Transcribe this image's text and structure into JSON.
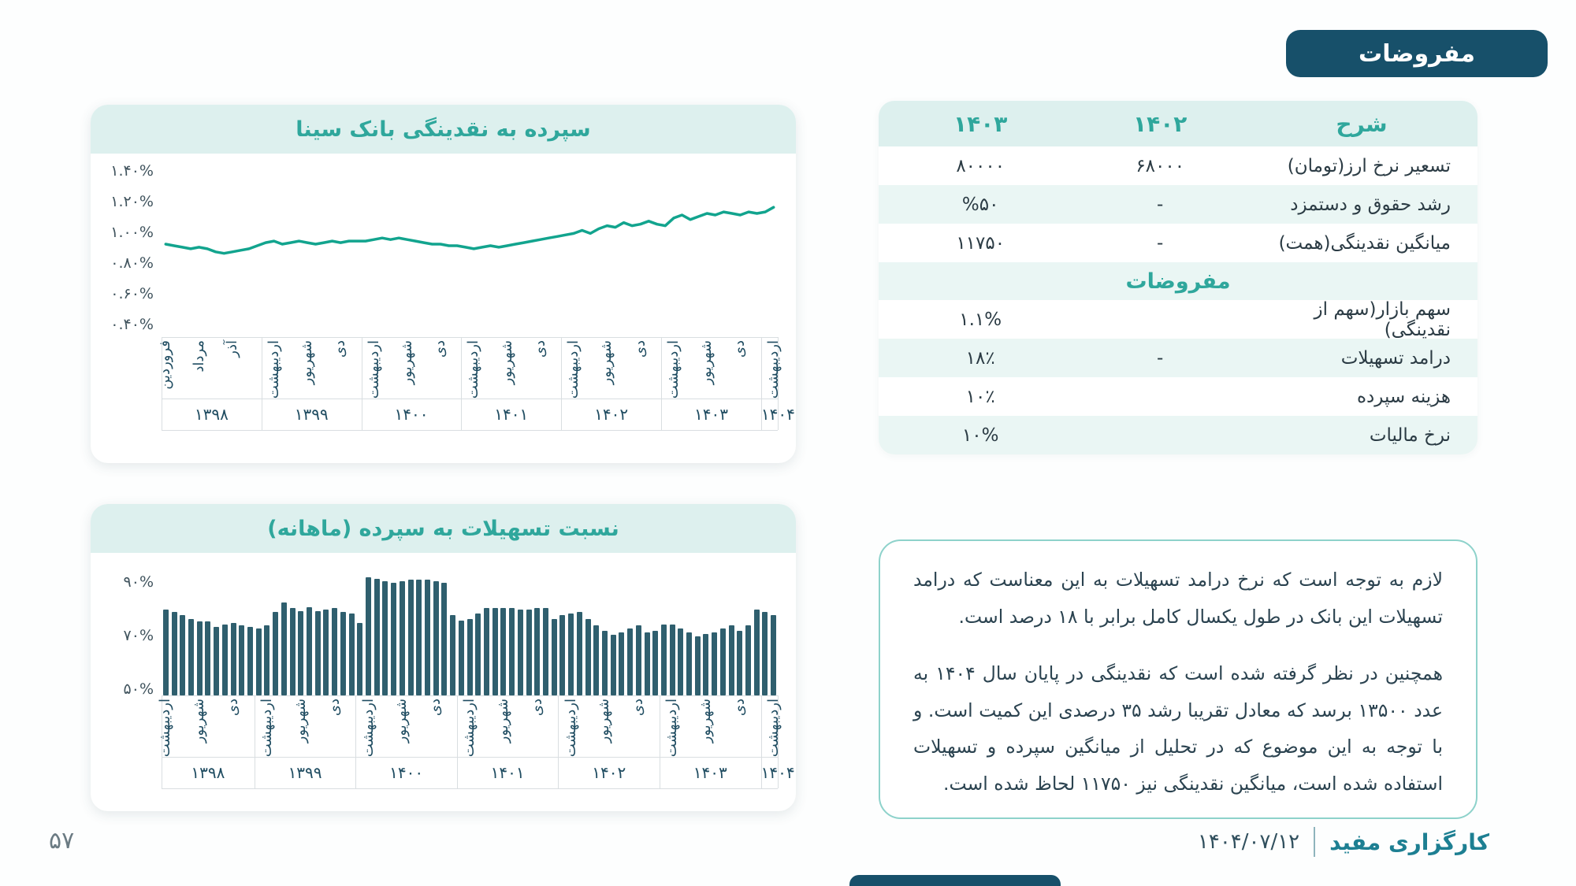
{
  "page": {
    "badge": "مفروضات",
    "page_number": "۵۷",
    "footer_brand": "کارگزاری مفید",
    "footer_date": "۱۴۰۴/۰۷/۱۲"
  },
  "colors": {
    "dark_teal": "#17506a",
    "accent_teal": "#2fa79c",
    "line_color": "#12a48e",
    "bar_color": "#2f5f6e",
    "band_bg": "#ddf0ee",
    "row_alt_bg": "#eaf6f4"
  },
  "table": {
    "headers": {
      "desc": "شرح",
      "y1402": "۱۴۰۲",
      "y1403": "۱۴۰۳"
    },
    "rows": [
      {
        "desc": "تسعیر نرخ ارز(تومان)",
        "v1402": "۶۸۰۰۰",
        "v1403": "۸۰۰۰۰"
      },
      {
        "desc": "رشد حقوق و دستمزد",
        "v1402": "-",
        "v1403": "%۵۰"
      },
      {
        "desc": "میانگین نقدینگی(همت)",
        "v1402": "-",
        "v1403": "۱۱۷۵۰"
      },
      {
        "section": "مفروضات"
      },
      {
        "desc": "سهم بازار(سهم از نقدینگی)",
        "v1402": "",
        "v1403": "۱.۱%"
      },
      {
        "desc": "درامد تسهیلات",
        "v1402": "-",
        "v1403": "۱۸٪"
      },
      {
        "desc": "هزینه سپرده",
        "v1402": "",
        "v1403": "۱۰٪"
      },
      {
        "desc": "نرخ مالیات",
        "v1402": "",
        "v1403": "۱۰%"
      }
    ]
  },
  "note": {
    "paragraph1": "لازم به توجه است که نرخ درامد تسهیلات به این معناست که درامد تسهیلات این بانک در طول یکسال کامل برابر با ۱۸ درصد است.",
    "paragraph2": "همچنین  در نظر گرفته شده است که نقدینگی در پایان سال ۱۴۰۴ به عدد ۱۳۵۰۰ برسد که معادل تقریبا رشد ۳۵ درصدی این کمیت است. و با توجه به این موضوع که در تحلیل از میانگین سپرده و تسهیلات استفاده شده است، میانگین نقدینگی نیز ۱۱۷۵۰ لحاظ شده است."
  },
  "chart_data": [
    {
      "type": "line",
      "title": "سپرده به نقدینگی بانک سینا",
      "color": "#12a48e",
      "ylim": [
        0.33,
        1.52
      ],
      "yticks": [
        {
          "label": "۱.۴۰%",
          "v": 1.4
        },
        {
          "label": "۱.۲۰%",
          "v": 1.2
        },
        {
          "label": "۱.۰۰%",
          "v": 1.0
        },
        {
          "label": "۰.۸۰%",
          "v": 0.8
        },
        {
          "label": "۰.۶۰%",
          "v": 0.6
        },
        {
          "label": "۰.۴۰%",
          "v": 0.4
        }
      ],
      "groups": [
        {
          "year": "۱۳۹۸",
          "count": 12,
          "months": [
            {
              "t": "فروردین",
              "i": 0
            },
            {
              "t": "مرداد",
              "i": 4
            },
            {
              "t": "آذر",
              "i": 8
            }
          ]
        },
        {
          "year": "۱۳۹۹",
          "count": 12,
          "months": [
            {
              "t": "اردیبهشت",
              "i": 1
            },
            {
              "t": "شهریور",
              "i": 5
            },
            {
              "t": "دی",
              "i": 9
            }
          ]
        },
        {
          "year": "۱۴۰۰",
          "count": 12,
          "months": [
            {
              "t": "اردیبهشت",
              "i": 1
            },
            {
              "t": "شهریور",
              "i": 5
            },
            {
              "t": "دی",
              "i": 9
            }
          ]
        },
        {
          "year": "۱۴۰۱",
          "count": 12,
          "months": [
            {
              "t": "اردیبهشت",
              "i": 1
            },
            {
              "t": "شهریور",
              "i": 5
            },
            {
              "t": "دی",
              "i": 9
            }
          ]
        },
        {
          "year": "۱۴۰۲",
          "count": 12,
          "months": [
            {
              "t": "اردیبهشت",
              "i": 1
            },
            {
              "t": "شهریور",
              "i": 5
            },
            {
              "t": "دی",
              "i": 9
            }
          ]
        },
        {
          "year": "۱۴۰۳",
          "count": 12,
          "months": [
            {
              "t": "اردیبهشت",
              "i": 1
            },
            {
              "t": "شهریور",
              "i": 5
            },
            {
              "t": "دی",
              "i": 9
            }
          ]
        },
        {
          "year": "۱۴۰۴",
          "count": 2,
          "months": [
            {
              "t": "اردیبهشت",
              "i": 1
            }
          ]
        }
      ],
      "values": [
        0.93,
        0.92,
        0.91,
        0.9,
        0.91,
        0.9,
        0.88,
        0.87,
        0.88,
        0.89,
        0.9,
        0.92,
        0.94,
        0.95,
        0.93,
        0.94,
        0.95,
        0.94,
        0.93,
        0.94,
        0.95,
        0.94,
        0.95,
        0.95,
        0.95,
        0.96,
        0.97,
        0.96,
        0.97,
        0.96,
        0.95,
        0.94,
        0.93,
        0.93,
        0.92,
        0.92,
        0.91,
        0.9,
        0.91,
        0.92,
        0.91,
        0.92,
        0.93,
        0.94,
        0.95,
        0.96,
        0.97,
        0.98,
        0.99,
        1.0,
        1.02,
        1.0,
        1.03,
        1.05,
        1.04,
        1.07,
        1.05,
        1.06,
        1.08,
        1.06,
        1.05,
        1.1,
        1.12,
        1.09,
        1.11,
        1.13,
        1.12,
        1.14,
        1.13,
        1.12,
        1.14,
        1.13,
        1.14,
        1.17
      ]
    },
    {
      "type": "bar",
      "title": "نسبت تسهیلات به سپرده (ماهانه)",
      "color": "#2f5f6e",
      "ylim": [
        48,
        97
      ],
      "yticks": [
        {
          "label": "۹۰%",
          "v": 90
        },
        {
          "label": "۷۰%",
          "v": 70
        },
        {
          "label": "۵۰%",
          "v": 50
        }
      ],
      "groups": [
        {
          "year": "۱۳۹۸",
          "count": 11,
          "months": [
            {
              "t": "اردیبهشت",
              "i": 0
            },
            {
              "t": "شهریور",
              "i": 4
            },
            {
              "t": "دی",
              "i": 8
            }
          ]
        },
        {
          "year": "۱۳۹۹",
          "count": 12,
          "months": [
            {
              "t": "اردیبهشت",
              "i": 1
            },
            {
              "t": "شهریور",
              "i": 5
            },
            {
              "t": "دی",
              "i": 9
            }
          ]
        },
        {
          "year": "۱۴۰۰",
          "count": 12,
          "months": [
            {
              "t": "اردیبهشت",
              "i": 1
            },
            {
              "t": "شهریور",
              "i": 5
            },
            {
              "t": "دی",
              "i": 9
            }
          ]
        },
        {
          "year": "۱۴۰۱",
          "count": 12,
          "months": [
            {
              "t": "اردیبهشت",
              "i": 1
            },
            {
              "t": "شهریور",
              "i": 5
            },
            {
              "t": "دی",
              "i": 9
            }
          ]
        },
        {
          "year": "۱۴۰۲",
          "count": 12,
          "months": [
            {
              "t": "اردیبهشت",
              "i": 1
            },
            {
              "t": "شهریور",
              "i": 5
            },
            {
              "t": "دی",
              "i": 9
            }
          ]
        },
        {
          "year": "۱۴۰۳",
          "count": 12,
          "months": [
            {
              "t": "اردیبهشت",
              "i": 1
            },
            {
              "t": "شهریور",
              "i": 5
            },
            {
              "t": "دی",
              "i": 9
            }
          ]
        },
        {
          "year": "۱۴۰۴",
          "count": 2,
          "months": [
            {
              "t": "اردیبهشت",
              "i": 1
            }
          ]
        }
      ],
      "values": [
        80,
        79,
        78,
        76.5,
        75.5,
        75.5,
        73.5,
        74.5,
        75,
        74,
        73.5,
        73,
        74,
        79,
        82.5,
        80.5,
        79.5,
        81,
        79.5,
        80,
        80.5,
        79,
        78.5,
        75,
        92,
        91.5,
        90.5,
        90,
        90.5,
        91,
        91,
        91,
        90.5,
        90,
        78,
        76,
        76.5,
        78.5,
        80.5,
        80.5,
        80.5,
        80.5,
        80,
        80,
        80.5,
        80.5,
        76.5,
        78,
        78.5,
        79,
        76.5,
        74,
        72,
        70.5,
        71.5,
        73,
        74,
        71.5,
        72,
        74.5,
        74.5,
        73,
        71.5,
        70,
        71,
        71.5,
        73,
        74,
        72,
        74,
        80,
        79,
        78
      ]
    }
  ]
}
